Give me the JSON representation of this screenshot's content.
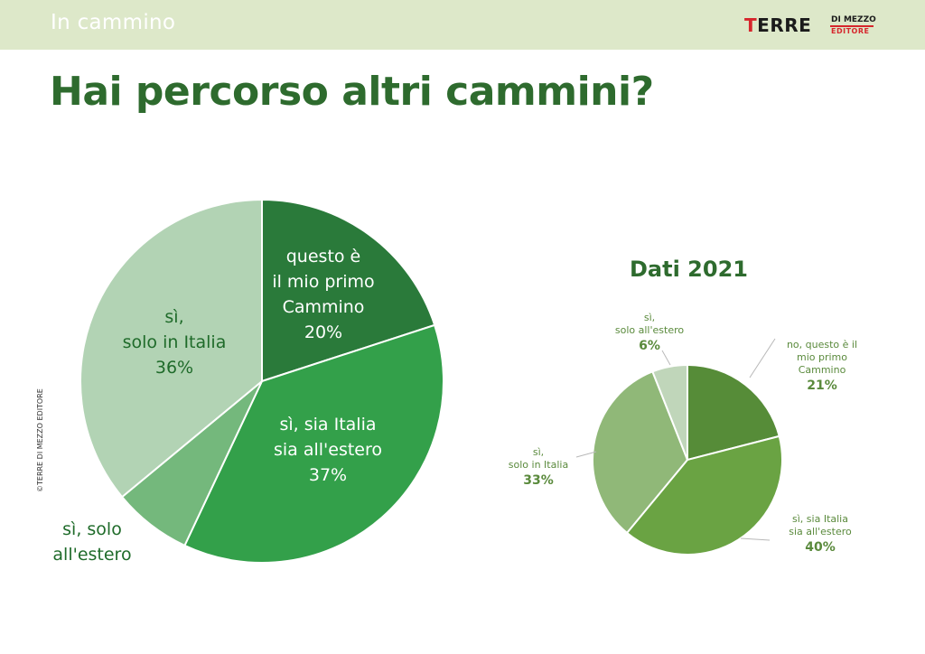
{
  "header": {
    "section_title": "In cammino",
    "logo": {
      "main": "TERRE",
      "sub1": "DI MEZZO",
      "sub2": "EDITORE"
    }
  },
  "title": "Hai percorso altri cammini?",
  "copyright": "©TERRE DI MEZZO EDITORE",
  "colors": {
    "topbar": "#dde8c9",
    "title": "#2e6b2e",
    "logo_red": "#d6262c"
  },
  "chart_data": [
    {
      "type": "pie",
      "slices": [
        {
          "lines": [
            "questo è",
            "il mio primo",
            "Cammino"
          ],
          "pct_label": "20%",
          "value": 20,
          "color": "#2a7a3a"
        },
        {
          "lines": [
            "sì, sia Italia",
            "sia all'estero"
          ],
          "pct_label": "37%",
          "value": 37,
          "color": "#33a04a"
        },
        {
          "lines": [
            "sì, solo",
            "all'estero"
          ],
          "pct_label": "",
          "value": 7,
          "color": "#74b87c"
        },
        {
          "lines": [
            "sì,",
            "solo in Italia"
          ],
          "pct_label": "36%",
          "value": 36,
          "color": "#b2d3b4"
        }
      ]
    },
    {
      "type": "pie",
      "title": "Dati 2021",
      "slices": [
        {
          "lines": [
            "no, questo è il",
            "mio primo",
            "Cammino"
          ],
          "pct_label": "21%",
          "value": 21,
          "color": "#568c38"
        },
        {
          "lines": [
            "sì, sia Italia",
            "sia all'estero"
          ],
          "pct_label": "40%",
          "value": 40,
          "color": "#6aa343"
        },
        {
          "lines": [
            "sì,",
            "solo in Italia"
          ],
          "pct_label": "33%",
          "value": 33,
          "color": "#90b878"
        },
        {
          "lines": [
            "sì,",
            "solo all'estero"
          ],
          "pct_label": "6%",
          "value": 6,
          "color": "#c0d6ba"
        }
      ]
    }
  ]
}
